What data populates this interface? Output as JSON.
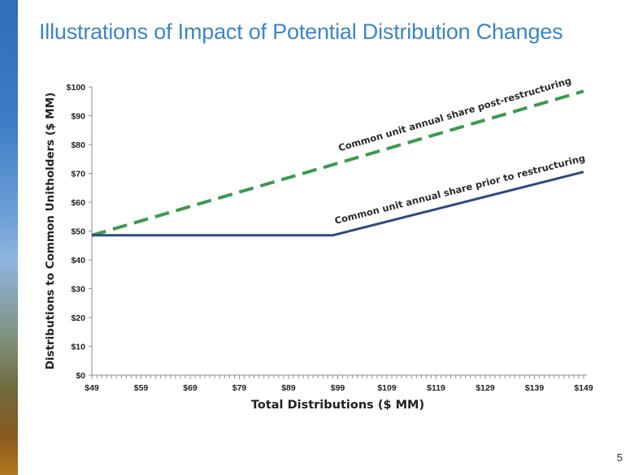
{
  "slide": {
    "title": "Illustrations of Impact of Potential Distribution Changes",
    "page_number": "5"
  },
  "chart_data": {
    "type": "line",
    "title": "",
    "xlabel": "Total Distributions ($ MM)",
    "ylabel": "Distributions to Common Unitholders ($ MM)",
    "xlim": [
      49,
      149
    ],
    "ylim": [
      0,
      100
    ],
    "x_tick_values": [
      49,
      59,
      69,
      79,
      89,
      99,
      109,
      119,
      129,
      139,
      149
    ],
    "x_tick_labels": [
      "$49",
      "$59",
      "$69",
      "$79",
      "$89",
      "$99",
      "$109",
      "$119",
      "$129",
      "$139",
      "$149"
    ],
    "y_tick_values": [
      0,
      10,
      20,
      30,
      40,
      50,
      60,
      70,
      80,
      90,
      100
    ],
    "y_tick_labels": [
      "$0",
      "$10",
      "$20",
      "$30",
      "$40",
      "$50",
      "$60",
      "$70",
      "$80",
      "$90",
      "$100"
    ],
    "series": [
      {
        "name": "Common unit annual share post-restructuring",
        "style": "dashed",
        "color": "#3c9a4e",
        "x": [
          49,
          149
        ],
        "y": [
          48.5,
          98.5
        ]
      },
      {
        "name": "Common unit annual share prior to restructuring",
        "style": "solid",
        "color": "#2f4a7f",
        "x": [
          49,
          98,
          149
        ],
        "y": [
          48.5,
          48.5,
          70.5
        ]
      }
    ]
  }
}
